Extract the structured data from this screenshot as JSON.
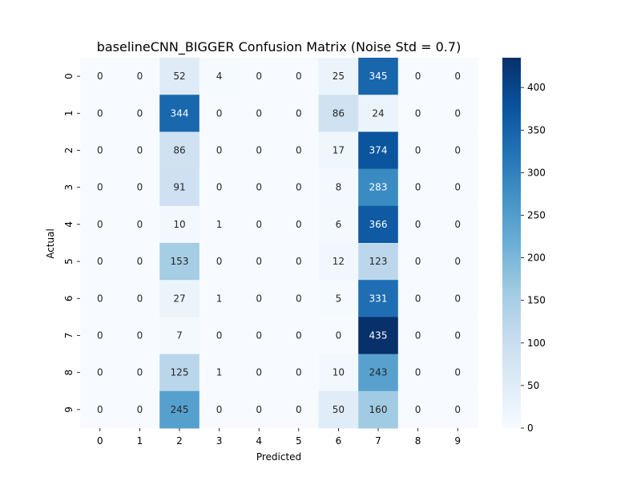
{
  "chart_data": {
    "type": "heatmap",
    "title": "baselineCNN_BIGGER Confusion Matrix (Noise Std = 0.7)",
    "xlabel": "Predicted",
    "ylabel": "Actual",
    "x_categories": [
      "0",
      "1",
      "2",
      "3",
      "4",
      "5",
      "6",
      "7",
      "8",
      "9"
    ],
    "y_categories": [
      "0",
      "1",
      "2",
      "3",
      "4",
      "5",
      "6",
      "7",
      "8",
      "9"
    ],
    "values": [
      [
        0,
        0,
        52,
        4,
        0,
        0,
        25,
        345,
        0,
        0
      ],
      [
        0,
        0,
        344,
        0,
        0,
        0,
        86,
        24,
        0,
        0
      ],
      [
        0,
        0,
        86,
        0,
        0,
        0,
        17,
        374,
        0,
        0
      ],
      [
        0,
        0,
        91,
        0,
        0,
        0,
        8,
        283,
        0,
        0
      ],
      [
        0,
        0,
        10,
        1,
        0,
        0,
        6,
        366,
        0,
        0
      ],
      [
        0,
        0,
        153,
        0,
        0,
        0,
        12,
        123,
        0,
        0
      ],
      [
        0,
        0,
        27,
        1,
        0,
        0,
        5,
        331,
        0,
        0
      ],
      [
        0,
        0,
        7,
        0,
        0,
        0,
        0,
        435,
        0,
        0
      ],
      [
        0,
        0,
        125,
        1,
        0,
        0,
        10,
        243,
        0,
        0
      ],
      [
        0,
        0,
        245,
        0,
        0,
        0,
        50,
        160,
        0,
        0
      ]
    ],
    "colormap": "Blues",
    "vmin": 0,
    "vmax": 435,
    "colorbar_ticks": [
      0,
      50,
      100,
      150,
      200,
      250,
      300,
      350,
      400
    ],
    "annotate": true
  }
}
